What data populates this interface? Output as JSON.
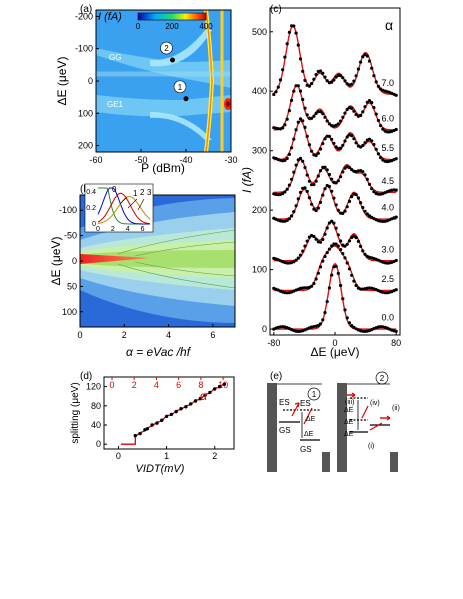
{
  "chart_data": [
    {
      "panel": "(a)",
      "type": "heatmap",
      "xlabel": "P (dBm)",
      "ylabel": "ΔE (μeV)",
      "xlim": [
        -60,
        -30
      ],
      "ylim": [
        -220,
        220
      ],
      "xticks": [
        "-60",
        "-50",
        "-40",
        "-30"
      ],
      "yticks": [
        "-200",
        "-100",
        "0",
        "100",
        "200"
      ],
      "colorbar": {
        "label": "I (fA)",
        "ticks": [
          "0",
          "200",
          "400"
        ],
        "range": [
          0,
          400
        ]
      },
      "annotations": [
        "GG",
        "GE1",
        "2",
        "1"
      ],
      "markers": [
        {
          "label": "2",
          "x": -43,
          "y": -65
        },
        {
          "label": "1",
          "x": -40,
          "y": 55
        }
      ]
    },
    {
      "panel": "(b)",
      "type": "heatmap",
      "xlabel": "α = eVac /hf",
      "ylabel": "ΔE (μeV)",
      "xlim": [
        0,
        7
      ],
      "ylim": [
        -130,
        130
      ],
      "xticks": [
        "0",
        "2",
        "4",
        "6"
      ],
      "yticks": [
        "-100",
        "-50",
        "0",
        "50",
        "100"
      ],
      "inset": {
        "type": "line",
        "xlim": [
          0,
          7
        ],
        "ylim": [
          0,
          0.45
        ],
        "xticks": [
          "0",
          "2",
          "4",
          "6"
        ],
        "yticks": [
          "0",
          "0.2",
          "0.4"
        ],
        "labels": [
          "0",
          "1",
          "2",
          "3"
        ],
        "series": [
          {
            "name": "0",
            "color": "#2a8c2a",
            "peak_x": 0,
            "peak_y": 1.0
          },
          {
            "name": "1",
            "color": "#0000cc",
            "peak_x": 1.8,
            "peak_y": 0.58
          },
          {
            "name": "2",
            "color": "#cc0000",
            "peak_x": 3.05,
            "peak_y": 0.48
          },
          {
            "name": "3",
            "color": "#cc8800",
            "peak_x": 4.2,
            "peak_y": 0.43
          }
        ]
      }
    },
    {
      "panel": "(c)",
      "type": "line",
      "xlabel": "ΔE (μeV)",
      "ylabel": "I (fA)",
      "xlim": [
        -85,
        85
      ],
      "ylim": [
        -10,
        540
      ],
      "xticks": [
        "-80",
        "0",
        "80"
      ],
      "yticks": [
        "0",
        "100",
        "200",
        "300",
        "400",
        "500"
      ],
      "legend_title": "α",
      "series_labels": [
        "7.0",
        "6.0",
        "5.5",
        "4.5",
        "4.0",
        "3.0",
        "2.5",
        "0.0"
      ],
      "series": [
        {
          "alpha": "0.0",
          "offset": 0,
          "peaks": [
            [
              0,
              110,
              8
            ]
          ]
        },
        {
          "alpha": "2.5",
          "offset": 65,
          "peaks": [
            [
              -15,
              45,
              8
            ],
            [
              0,
              60,
              8
            ],
            [
              15,
              40,
              8
            ]
          ]
        },
        {
          "alpha": "3.0",
          "offset": 115,
          "peaks": [
            [
              -30,
              40,
              8
            ],
            [
              -5,
              65,
              9
            ],
            [
              25,
              45,
              8
            ]
          ]
        },
        {
          "alpha": "4.0",
          "offset": 185,
          "peaks": [
            [
              -40,
              50,
              8
            ],
            [
              -10,
              55,
              8
            ],
            [
              25,
              45,
              8
            ]
          ]
        },
        {
          "alpha": "4.5",
          "offset": 230,
          "peaks": [
            [
              -45,
              55,
              8
            ],
            [
              -15,
              40,
              8
            ],
            [
              15,
              45,
              8
            ],
            [
              35,
              30,
              8
            ]
          ]
        },
        {
          "alpha": "5.5",
          "offset": 285,
          "peaks": [
            [
              -45,
              65,
              8
            ],
            [
              -10,
              40,
              8
            ],
            [
              20,
              45,
              8
            ],
            [
              45,
              30,
              8
            ]
          ]
        },
        {
          "alpha": "6.0",
          "offset": 335,
          "peaks": [
            [
              -50,
              75,
              8
            ],
            [
              -20,
              35,
              8
            ],
            [
              20,
              40,
              8
            ],
            [
              45,
              45,
              8
            ]
          ]
        },
        {
          "alpha": "7.0",
          "offset": 395,
          "peaks": [
            [
              -55,
              115,
              9
            ],
            [
              -20,
              35,
              8
            ],
            [
              5,
              35,
              8
            ],
            [
              40,
              70,
              9
            ]
          ]
        }
      ]
    },
    {
      "panel": "(d)",
      "type": "scatter",
      "xlabel": "VIDT(mV)",
      "ylabel": "splitting (μeV)",
      "xlim": [
        -0.3,
        2.4
      ],
      "ylim": [
        -10,
        140
      ],
      "xticks": [
        "0",
        "1",
        "2"
      ],
      "yticks": [
        "0",
        "40",
        "80",
        "120"
      ],
      "top_axis": {
        "label": "α",
        "ticks": [
          "0",
          "2",
          "4",
          "6",
          "8",
          "10"
        ],
        "color": "#dd0000",
        "range": [
          0,
          10.8
        ]
      },
      "points_x": [
        0.35,
        0.45,
        0.55,
        0.6,
        0.7,
        0.8,
        0.9,
        1.0,
        1.1,
        1.2,
        1.3,
        1.4,
        1.5,
        1.6,
        1.7,
        1.8,
        1.9,
        2.0,
        2.1,
        2.2
      ],
      "points_y": [
        18,
        22,
        30,
        32,
        40,
        44,
        50,
        58,
        62,
        68,
        74,
        78,
        84,
        90,
        95,
        102,
        108,
        115,
        120,
        125
      ]
    },
    {
      "panel": "(e)",
      "type": "diagram",
      "labels": [
        "ES",
        "ES",
        "GS",
        "ΔE",
        "ΔE",
        "GS",
        "ΔE",
        "ΔE",
        "ΔE",
        "(iii)",
        "(iv)",
        "(ii)",
        "(i)"
      ],
      "markers": [
        "1",
        "2"
      ]
    }
  ]
}
